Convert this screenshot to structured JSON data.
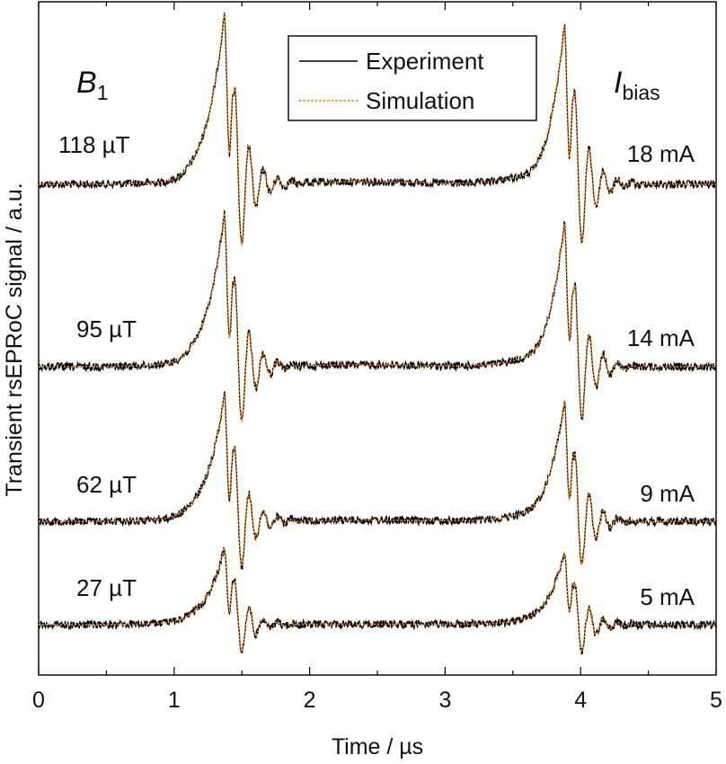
{
  "chart_data": {
    "type": "line",
    "title": "",
    "xlabel": "Time / µs",
    "ylabel": "Transient rsEPRoC signal / a.u.",
    "xlim": [
      0,
      5
    ],
    "x_ticks": [
      "0",
      "1",
      "2",
      "3",
      "4",
      "5"
    ],
    "grid": false,
    "legend_position": "top-center",
    "legend": [
      {
        "name": "Experiment",
        "color": "#000000",
        "style": "solid"
      },
      {
        "name": "Simulation",
        "color": "#f08a24",
        "style": "dotted"
      }
    ],
    "left_header": {
      "main": "B",
      "sub": "1"
    },
    "right_header": {
      "main": "I",
      "sub": "bias"
    },
    "traces": [
      {
        "b1": "118 µT",
        "ibias": "18 mA",
        "amplitude": 1.0,
        "baseline_dip_1": 0.05,
        "baseline_dip_2": 0.08
      },
      {
        "b1": "95 µT",
        "ibias": "14 mA",
        "amplitude": 0.9,
        "baseline_dip_1": 0.04,
        "baseline_dip_2": 0.07
      },
      {
        "b1": "62 µT",
        "ibias": "9 mA",
        "amplitude": 0.75,
        "baseline_dip_1": 0.03,
        "baseline_dip_2": 0.05
      },
      {
        "b1": "27 µT",
        "ibias": "5 mA",
        "amplitude": 0.45,
        "baseline_dip_1": 0.02,
        "baseline_dip_2": 0.03
      }
    ],
    "pulse_times_us": [
      1.37,
      3.88
    ]
  },
  "colors": {
    "experiment": "#000000",
    "simulation": "#f08a24",
    "axis": "#000000"
  }
}
